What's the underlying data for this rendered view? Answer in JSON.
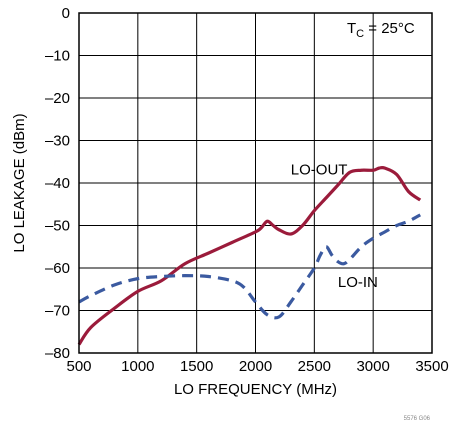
{
  "chart_data": {
    "type": "line",
    "title": "",
    "xlabel": "LO FREQUENCY (MHz)",
    "ylabel": "LO LEAKAGE (dBm)",
    "xlim": [
      500,
      3500
    ],
    "ylim": [
      -80,
      0
    ],
    "x_ticks": [
      500,
      1000,
      1500,
      2000,
      2500,
      3000,
      3500
    ],
    "x_tick_labels": [
      "500",
      "1000",
      "1500",
      "2000",
      "2500",
      "3000",
      "3500"
    ],
    "y_ticks": [
      0,
      -10,
      -20,
      -30,
      -40,
      -50,
      -60,
      -70,
      -80
    ],
    "y_tick_labels": [
      "0",
      "–10",
      "–20",
      "–30",
      "–40",
      "–50",
      "–60",
      "–70",
      "–80"
    ],
    "grid": true,
    "condition_label": {
      "prefix": "T",
      "subscript": "C",
      "suffix": " = 25°C"
    },
    "figure_number": "5576 G06",
    "series": [
      {
        "name": "LO-OUT",
        "color": "#9b1b3b",
        "style": "solid",
        "x": [
          500,
          600,
          800,
          1000,
          1200,
          1400,
          1600,
          1800,
          2000,
          2050,
          2100,
          2150,
          2200,
          2300,
          2400,
          2500,
          2600,
          2700,
          2800,
          2900,
          3000,
          3050,
          3100,
          3200,
          3300,
          3400
        ],
        "y": [
          -78,
          -74,
          -69.5,
          -65.5,
          -63,
          -59,
          -56.5,
          -54,
          -51.5,
          -50.5,
          -49,
          -50,
          -51,
          -52,
          -50,
          -46.5,
          -43.5,
          -40.5,
          -37.5,
          -37,
          -37,
          -36.5,
          -36.5,
          -38,
          -42,
          -44
        ]
      },
      {
        "name": "LO-IN",
        "color": "#3b5aa0",
        "style": "dashed",
        "x": [
          500,
          600,
          800,
          1000,
          1200,
          1400,
          1600,
          1800,
          1900,
          2000,
          2100,
          2200,
          2300,
          2400,
          2500,
          2550,
          2600,
          2650,
          2700,
          2750,
          2800,
          2900,
          3000,
          3100,
          3200,
          3300,
          3400
        ],
        "y": [
          -68,
          -66.5,
          -64,
          -62.5,
          -62,
          -61.8,
          -62,
          -63,
          -64.5,
          -68,
          -71,
          -71.5,
          -68,
          -64,
          -60,
          -57,
          -55,
          -57,
          -58.5,
          -59,
          -58,
          -55,
          -53,
          -51.5,
          -50,
          -49,
          -47.5
        ]
      }
    ],
    "annotations": [
      {
        "text": "LO-OUT",
        "x": 2300,
        "y": -38
      },
      {
        "text": "LO-IN",
        "x": 2700,
        "y": -64.5
      }
    ]
  }
}
